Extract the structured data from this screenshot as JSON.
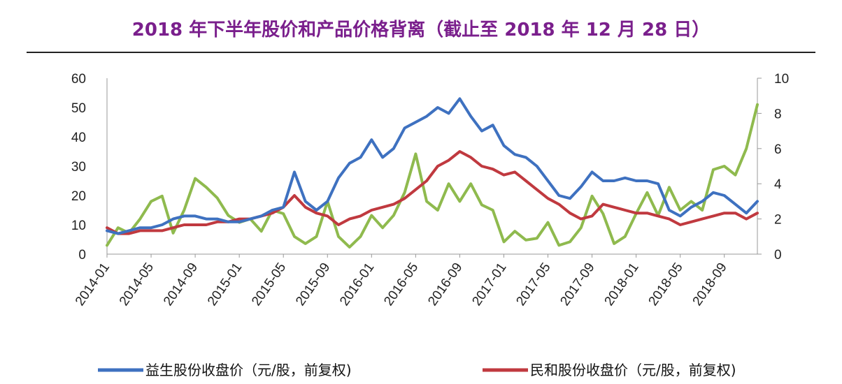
{
  "title": "2018 年下半年股价和产品价格背离（截止至 2018 年 12 月 28 日）",
  "colors": {
    "title": "#7a1f8c",
    "series": [
      "#3e71c0",
      "#c0393f",
      "#8fba4e"
    ]
  },
  "chart_data": {
    "type": "line",
    "title": "2018 年下半年股价和产品价格背离（截止至 2018 年 12 月 28 日）",
    "left_axis": {
      "ylim": [
        0,
        60
      ],
      "ticks": [
        "0",
        "10",
        "20",
        "30",
        "40",
        "50",
        "60"
      ]
    },
    "right_axis": {
      "ylim": [
        0,
        10
      ],
      "ticks": [
        "0",
        "2",
        "4",
        "6",
        "8",
        "10"
      ]
    },
    "x_tick_labels": [
      "2014-01",
      "2014-05",
      "2014-09",
      "2015-01",
      "2015-05",
      "2015-09",
      "2016-01",
      "2016-05",
      "2016-09",
      "2017-01",
      "2017-05",
      "2017-09",
      "2018-01",
      "2018-05",
      "2018-09"
    ],
    "x_range": [
      "2014-01",
      "2018-12"
    ],
    "legend_placement": "bottom",
    "series": [
      {
        "name": "益生股份收盘价（元/股，前复权)",
        "axis": "left",
        "x": [
          "2014-01",
          "2014-02",
          "2014-03",
          "2014-04",
          "2014-05",
          "2014-06",
          "2014-07",
          "2014-08",
          "2014-09",
          "2014-10",
          "2014-11",
          "2014-12",
          "2015-01",
          "2015-02",
          "2015-03",
          "2015-04",
          "2015-05",
          "2015-06",
          "2015-07",
          "2015-08",
          "2015-09",
          "2015-10",
          "2015-11",
          "2015-12",
          "2016-01",
          "2016-02",
          "2016-03",
          "2016-04",
          "2016-05",
          "2016-06",
          "2016-07",
          "2016-08",
          "2016-09",
          "2016-10",
          "2016-11",
          "2016-12",
          "2017-01",
          "2017-02",
          "2017-03",
          "2017-04",
          "2017-05",
          "2017-06",
          "2017-07",
          "2017-08",
          "2017-09",
          "2017-10",
          "2017-11",
          "2017-12",
          "2018-01",
          "2018-02",
          "2018-03",
          "2018-04",
          "2018-05",
          "2018-06",
          "2018-07",
          "2018-08",
          "2018-09",
          "2018-10",
          "2018-11",
          "2018-12"
        ],
        "values": [
          8,
          7,
          8,
          9,
          9,
          10,
          12,
          13,
          13,
          12,
          12,
          11,
          11,
          12,
          13,
          15,
          16,
          28,
          18,
          15,
          18,
          26,
          31,
          33,
          39,
          33,
          36,
          43,
          45,
          47,
          50,
          48,
          53,
          47,
          42,
          44,
          37,
          34,
          33,
          30,
          25,
          20,
          19,
          23,
          28,
          25,
          25,
          26,
          25,
          25,
          24,
          15,
          13,
          16,
          18,
          21,
          20,
          17,
          14,
          18
        ]
      },
      {
        "name": "民和股份收盘价（元/股，前复权)",
        "axis": "left",
        "x": [
          "2014-01",
          "2014-02",
          "2014-03",
          "2014-04",
          "2014-05",
          "2014-06",
          "2014-07",
          "2014-08",
          "2014-09",
          "2014-10",
          "2014-11",
          "2014-12",
          "2015-01",
          "2015-02",
          "2015-03",
          "2015-04",
          "2015-05",
          "2015-06",
          "2015-07",
          "2015-08",
          "2015-09",
          "2015-10",
          "2015-11",
          "2015-12",
          "2016-01",
          "2016-02",
          "2016-03",
          "2016-04",
          "2016-05",
          "2016-06",
          "2016-07",
          "2016-08",
          "2016-09",
          "2016-10",
          "2016-11",
          "2016-12",
          "2017-01",
          "2017-02",
          "2017-03",
          "2017-04",
          "2017-05",
          "2017-06",
          "2017-07",
          "2017-08",
          "2017-09",
          "2017-10",
          "2017-11",
          "2017-12",
          "2018-01",
          "2018-02",
          "2018-03",
          "2018-04",
          "2018-05",
          "2018-06",
          "2018-07",
          "2018-08",
          "2018-09",
          "2018-10",
          "2018-11",
          "2018-12"
        ],
        "values": [
          9,
          7,
          7,
          8,
          8,
          8,
          9,
          10,
          10,
          10,
          11,
          11,
          12,
          12,
          13,
          14,
          16,
          20,
          16,
          14,
          13,
          10,
          12,
          13,
          15,
          16,
          17,
          19,
          22,
          25,
          30,
          32,
          35,
          33,
          30,
          29,
          27,
          28,
          25,
          22,
          19,
          17,
          14,
          12,
          13,
          17,
          16,
          15,
          14,
          14,
          13,
          12,
          10,
          11,
          12,
          13,
          14,
          14,
          12,
          14
        ]
      },
      {
        "name": "",
        "axis": "right",
        "x": [
          "2014-01",
          "2014-02",
          "2014-03",
          "2014-04",
          "2014-05",
          "2014-06",
          "2014-07",
          "2014-08",
          "2014-09",
          "2014-10",
          "2014-11",
          "2014-12",
          "2015-01",
          "2015-02",
          "2015-03",
          "2015-04",
          "2015-05",
          "2015-06",
          "2015-07",
          "2015-08",
          "2015-09",
          "2015-10",
          "2015-11",
          "2015-12",
          "2016-01",
          "2016-02",
          "2016-03",
          "2016-04",
          "2016-05",
          "2016-06",
          "2016-07",
          "2016-08",
          "2016-09",
          "2016-10",
          "2016-11",
          "2016-12",
          "2017-01",
          "2017-02",
          "2017-03",
          "2017-04",
          "2017-05",
          "2017-06",
          "2017-07",
          "2017-08",
          "2017-09",
          "2017-10",
          "2017-11",
          "2017-12",
          "2018-01",
          "2018-02",
          "2018-03",
          "2018-04",
          "2018-05",
          "2018-06",
          "2018-07",
          "2018-08",
          "2018-09",
          "2018-10",
          "2018-11",
          "2018-12"
        ],
        "values": [
          0.5,
          1.5,
          1.2,
          2.0,
          3.0,
          3.3,
          1.2,
          2.5,
          4.3,
          3.8,
          3.2,
          2.2,
          1.8,
          2.0,
          1.3,
          2.5,
          2.3,
          1.0,
          0.6,
          1.0,
          3.0,
          1.0,
          0.4,
          1.0,
          2.2,
          1.5,
          2.2,
          3.5,
          5.7,
          3.0,
          2.5,
          4.0,
          3.0,
          4.0,
          2.8,
          2.5,
          0.7,
          1.3,
          0.8,
          0.9,
          1.8,
          0.5,
          0.7,
          1.5,
          3.3,
          2.3,
          0.6,
          1.0,
          2.3,
          3.5,
          2.2,
          3.8,
          2.5,
          3.0,
          2.5,
          4.8,
          5.0,
          4.5,
          6.0,
          8.5
        ]
      }
    ]
  }
}
